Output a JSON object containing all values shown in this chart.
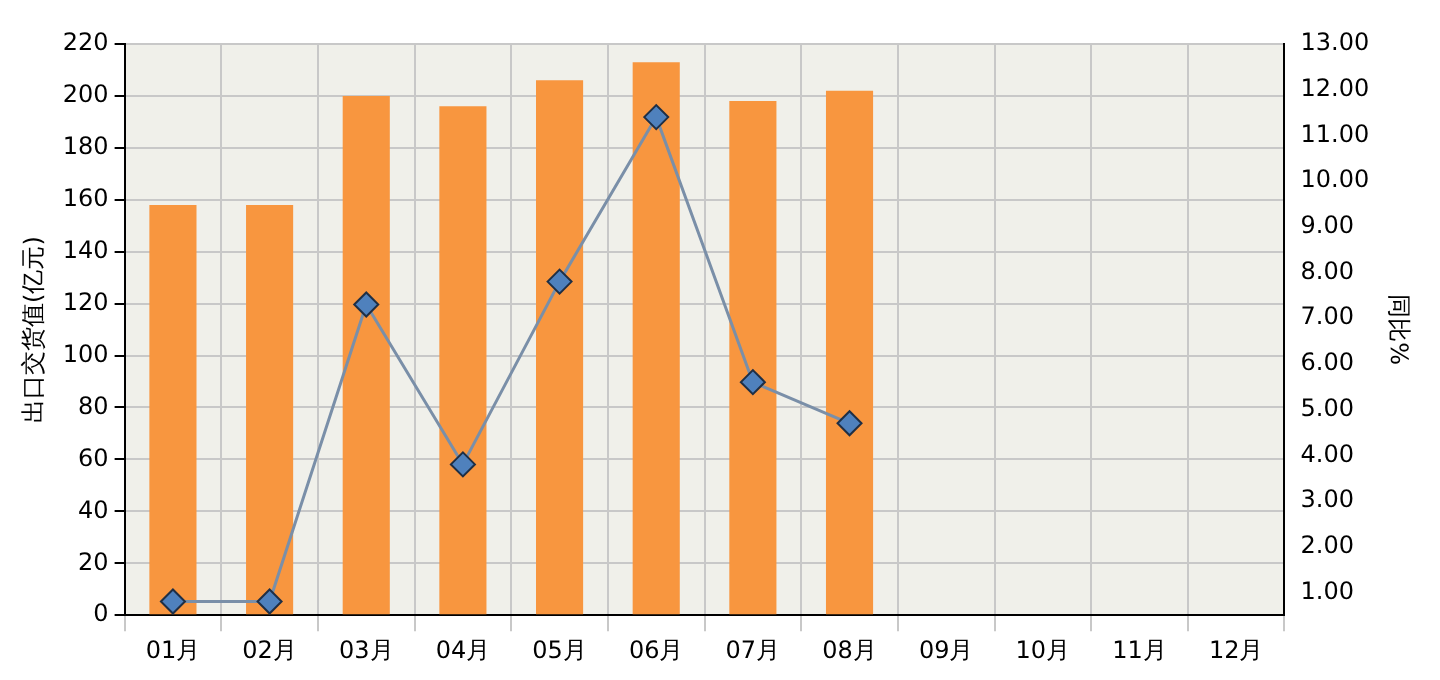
{
  "chart_data": {
    "type": "bar",
    "ylabel": "出口交货值(亿元)",
    "y2label": "同比%",
    "categories": [
      "01月",
      "02月",
      "03月",
      "04月",
      "05月",
      "06月",
      "07月",
      "08月",
      "09月",
      "10月",
      "11月",
      "12月"
    ],
    "series": [
      {
        "color": "#f8963f",
        "values": [
          158,
          158,
          200,
          196,
          206,
          213,
          198,
          202,
          null,
          null,
          null,
          null
        ]
      },
      {
        "type": "line",
        "axis": "y2",
        "color": "#7a8fa8",
        "marker": "diamond",
        "values": [
          0.8,
          0.8,
          7.3,
          3.8,
          7.8,
          11.4,
          5.6,
          4.7,
          null,
          null,
          null,
          null
        ]
      }
    ],
    "ylim": [
      0,
      220
    ],
    "yticks": [
      0,
      20,
      40,
      60,
      80,
      100,
      120,
      140,
      160,
      180,
      200,
      220
    ],
    "y2lim": [
      0.5,
      13
    ],
    "y2ticks": [
      {
        "value": 1,
        "label": "1.00"
      },
      {
        "value": 2,
        "label": "2.00"
      },
      {
        "value": 3,
        "label": "3.00"
      },
      {
        "value": 4,
        "label": "4.00"
      },
      {
        "value": 5,
        "label": "5.00"
      },
      {
        "value": 6,
        "label": "6.00"
      },
      {
        "value": 7,
        "label": "7.00"
      },
      {
        "value": 8,
        "label": "8.00"
      },
      {
        "value": 9,
        "label": "9.00"
      },
      {
        "value": 10,
        "label": "10.00"
      },
      {
        "value": 11,
        "label": "11.00"
      },
      {
        "value": 12,
        "label": "12.00"
      },
      {
        "value": 13,
        "label": "13.00"
      }
    ],
    "grid": true,
    "legend": false
  }
}
